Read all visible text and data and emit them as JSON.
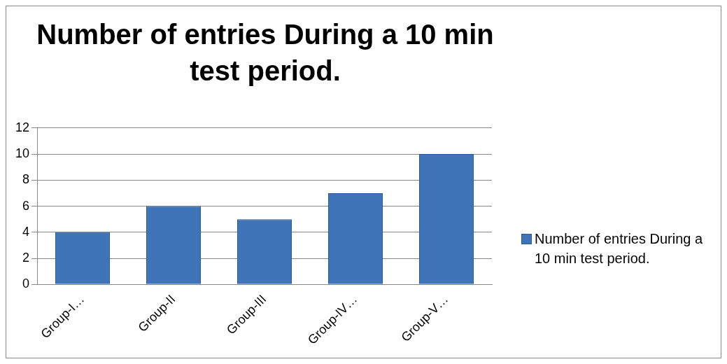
{
  "chart_data": {
    "type": "bar",
    "title": "Number of entries During a 10 min test period.",
    "categories": [
      "Group-I…",
      "Group-II",
      "Group-III",
      "Group-IV…",
      "Group-V…"
    ],
    "series": [
      {
        "name": "Number of entries During a 10 min test period.",
        "color": "#3f74b8",
        "values": [
          4,
          6,
          5,
          7,
          10
        ]
      }
    ],
    "ylim": [
      0,
      12
    ],
    "yticks": [
      0,
      2,
      4,
      6,
      8,
      10,
      12
    ],
    "grid": "y",
    "legend": "right"
  }
}
